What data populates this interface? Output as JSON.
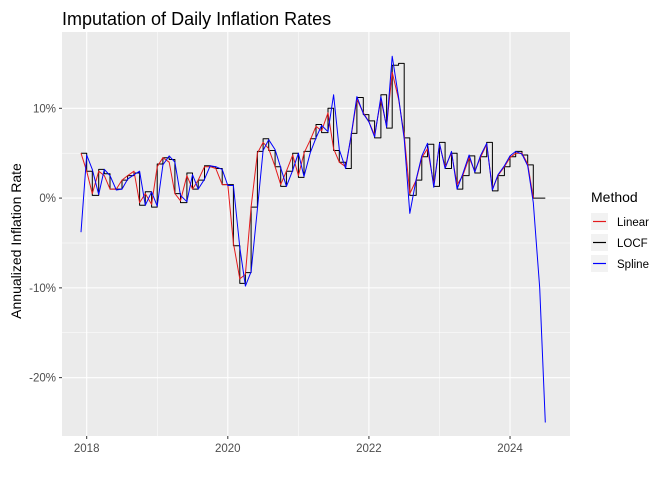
{
  "chart_data": {
    "type": "line",
    "title": "Imputation of Daily Inflation Rates",
    "xlabel": "",
    "ylabel": "Annualized Inflation Rate",
    "xlim": [
      2017.65,
      2024.85
    ],
    "ylim": [
      -26.5,
      18.5
    ],
    "x_ticks": [
      2018,
      2020,
      2022,
      2024
    ],
    "x_tick_labels": [
      "2018",
      "2020",
      "2022",
      "2024"
    ],
    "y_ticks": [
      -20,
      -10,
      0,
      10
    ],
    "y_tick_labels": [
      "-20%",
      "-10%",
      "0%",
      "10%"
    ],
    "grid": true,
    "legend": {
      "title": "Method",
      "position": "right"
    },
    "colors": {
      "Linear": "#e41a1c",
      "LOCF": "#000000",
      "Spline": "#0000ff"
    },
    "series": [
      {
        "name": "Linear",
        "x": [
          2017.92,
          2018.0,
          2018.08,
          2018.17,
          2018.25,
          2018.33,
          2018.42,
          2018.5,
          2018.58,
          2018.67,
          2018.75,
          2018.83,
          2018.92,
          2019.0,
          2019.08,
          2019.17,
          2019.25,
          2019.33,
          2019.42,
          2019.5,
          2019.58,
          2019.67,
          2019.75,
          2019.83,
          2019.92,
          2020.0,
          2020.08,
          2020.17,
          2020.25,
          2020.33,
          2020.42,
          2020.5,
          2020.58,
          2020.67,
          2020.75,
          2020.83,
          2020.92,
          2021.0,
          2021.08,
          2021.17,
          2021.25,
          2021.33,
          2021.42,
          2021.5,
          2021.58,
          2021.67,
          2021.75,
          2021.83,
          2021.92,
          2022.0,
          2022.08,
          2022.17,
          2022.25,
          2022.33,
          2022.42,
          2022.5,
          2022.58,
          2022.67,
          2022.75,
          2022.83,
          2022.92,
          2023.0,
          2023.08,
          2023.17,
          2023.25,
          2023.33,
          2023.42,
          2023.5,
          2023.58,
          2023.67,
          2023.75,
          2023.83,
          2023.92,
          2024.0,
          2024.08,
          2024.17,
          2024.25,
          2024.33
        ],
        "y": [
          5.0,
          3.0,
          0.5,
          3.0,
          2.5,
          1.0,
          1.0,
          2.0,
          2.5,
          3.0,
          -0.5,
          0.5,
          -0.7,
          3.5,
          4.5,
          4.0,
          0.5,
          -0.3,
          2.5,
          1.0,
          2.0,
          3.5,
          3.5,
          3.3,
          1.5,
          1.5,
          -5.0,
          -9.0,
          -8.5,
          -1.0,
          5.0,
          6.2,
          5.5,
          3.5,
          1.5,
          3.0,
          4.8,
          2.5,
          5.0,
          6.5,
          8.0,
          7.5,
          9.5,
          5.5,
          4.0,
          3.5,
          7.0,
          11.0,
          9.5,
          8.5,
          7.0,
          11.0,
          8.0,
          14.0,
          11.0,
          7.0,
          0.5,
          2.0,
          4.5,
          5.5,
          1.5,
          6.0,
          3.5,
          5.0,
          1.5,
          2.5,
          4.5,
          3.0,
          4.5,
          6.0,
          1.0,
          2.5,
          3.5,
          4.5,
          5.0,
          5.0,
          3.8,
          0.0
        ]
      },
      {
        "name": "LOCF",
        "x": [
          2017.92,
          2018.0,
          2018.08,
          2018.17,
          2018.25,
          2018.33,
          2018.42,
          2018.5,
          2018.58,
          2018.67,
          2018.75,
          2018.83,
          2018.92,
          2019.0,
          2019.08,
          2019.17,
          2019.25,
          2019.33,
          2019.42,
          2019.5,
          2019.58,
          2019.67,
          2019.75,
          2019.83,
          2019.92,
          2020.0,
          2020.08,
          2020.17,
          2020.25,
          2020.33,
          2020.42,
          2020.5,
          2020.58,
          2020.67,
          2020.75,
          2020.83,
          2020.92,
          2021.0,
          2021.08,
          2021.17,
          2021.25,
          2021.33,
          2021.42,
          2021.5,
          2021.58,
          2021.67,
          2021.75,
          2021.83,
          2021.92,
          2022.0,
          2022.08,
          2022.17,
          2022.25,
          2022.33,
          2022.42,
          2022.5,
          2022.58,
          2022.67,
          2022.75,
          2022.83,
          2022.92,
          2023.0,
          2023.08,
          2023.17,
          2023.25,
          2023.33,
          2023.42,
          2023.5,
          2023.58,
          2023.67,
          2023.75,
          2023.83,
          2023.92,
          2024.0,
          2024.08,
          2024.17,
          2024.25,
          2024.33,
          2024.5
        ],
        "y": [
          5.0,
          3.0,
          0.3,
          3.2,
          2.7,
          1.0,
          1.0,
          2.0,
          2.5,
          2.8,
          -0.8,
          0.7,
          -1.0,
          3.8,
          4.5,
          4.3,
          0.5,
          -0.5,
          2.8,
          1.0,
          2.0,
          3.6,
          3.5,
          3.3,
          1.5,
          1.5,
          -5.3,
          -9.5,
          -8.3,
          -1.0,
          5.2,
          6.6,
          5.3,
          3.5,
          1.3,
          3.0,
          5.0,
          2.3,
          5.2,
          6.6,
          8.2,
          7.3,
          10.0,
          5.3,
          4.0,
          3.3,
          7.2,
          11.2,
          9.3,
          8.6,
          6.7,
          11.5,
          7.8,
          14.8,
          15.0,
          6.7,
          0.3,
          2.0,
          4.6,
          6.0,
          1.3,
          6.2,
          3.3,
          5.0,
          1.0,
          2.5,
          4.7,
          2.8,
          4.6,
          6.2,
          0.8,
          2.5,
          3.5,
          4.6,
          5.2,
          4.8,
          3.7,
          0.0,
          0.0
        ]
      },
      {
        "name": "Spline",
        "x": [
          2017.92,
          2018.0,
          2018.08,
          2018.17,
          2018.25,
          2018.33,
          2018.42,
          2018.5,
          2018.58,
          2018.67,
          2018.75,
          2018.83,
          2018.92,
          2019.0,
          2019.08,
          2019.17,
          2019.25,
          2019.33,
          2019.42,
          2019.5,
          2019.58,
          2019.67,
          2019.75,
          2019.83,
          2019.92,
          2020.0,
          2020.08,
          2020.17,
          2020.25,
          2020.33,
          2020.42,
          2020.5,
          2020.58,
          2020.67,
          2020.75,
          2020.83,
          2020.92,
          2021.0,
          2021.08,
          2021.17,
          2021.25,
          2021.33,
          2021.42,
          2021.5,
          2021.58,
          2021.67,
          2021.75,
          2021.83,
          2021.92,
          2022.0,
          2022.08,
          2022.17,
          2022.25,
          2022.33,
          2022.42,
          2022.5,
          2022.58,
          2022.67,
          2022.75,
          2022.83,
          2022.92,
          2023.0,
          2023.08,
          2023.17,
          2023.25,
          2023.33,
          2023.42,
          2023.5,
          2023.58,
          2023.67,
          2023.75,
          2023.83,
          2023.92,
          2024.0,
          2024.08,
          2024.17,
          2024.25,
          2024.33,
          2024.42,
          2024.5
        ],
        "y": [
          -3.8,
          4.8,
          3.2,
          0.4,
          3.2,
          2.5,
          0.9,
          1.0,
          2.1,
          2.6,
          3.0,
          -0.8,
          0.7,
          -0.9,
          3.7,
          4.7,
          4.0,
          0.3,
          -0.4,
          2.6,
          1.0,
          2.1,
          3.6,
          3.5,
          3.2,
          1.4,
          1.4,
          -5.5,
          -9.8,
          -8.2,
          -1.2,
          5.3,
          6.5,
          5.4,
          3.4,
          1.3,
          3.1,
          5.0,
          2.4,
          5.1,
          6.7,
          8.1,
          7.4,
          11.5,
          5.4,
          3.3,
          7.1,
          11.3,
          9.4,
          8.5,
          6.8,
          11.3,
          7.9,
          15.8,
          11.2,
          6.6,
          -1.7,
          2.1,
          4.7,
          6.1,
          1.2,
          6.1,
          3.3,
          5.2,
          1.0,
          2.7,
          4.8,
          2.9,
          4.7,
          6.1,
          0.9,
          2.6,
          3.6,
          4.7,
          5.2,
          4.9,
          3.6,
          -0.5,
          -10.0,
          -25.0
        ]
      }
    ]
  }
}
